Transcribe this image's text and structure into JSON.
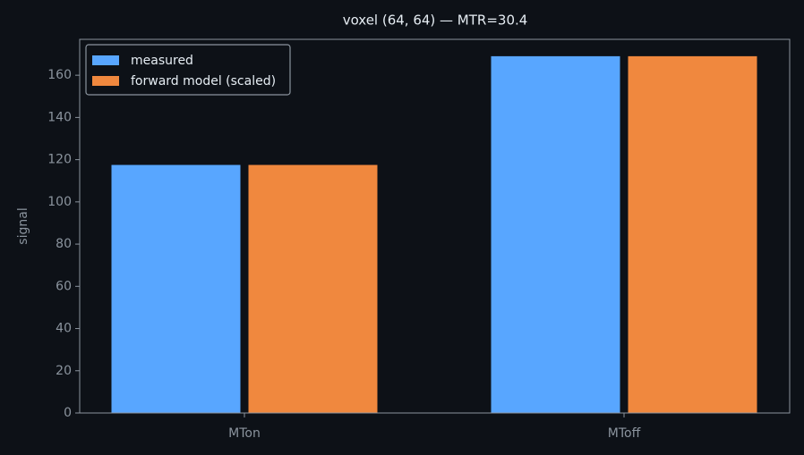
{
  "chart_data": {
    "type": "bar",
    "title": "voxel (64, 64) — MTR=30.4",
    "y_label": "signal",
    "categories": [
      "MTon",
      "MToff"
    ],
    "series": [
      {
        "name": "measured",
        "color": "#58a6ff",
        "values": [
          117.5,
          169
        ]
      },
      {
        "name": "forward model (scaled)",
        "color": "#f0883e",
        "values": [
          117.5,
          169
        ]
      }
    ],
    "ylim": [
      0,
      177
    ],
    "yticks": [
      0,
      20,
      40,
      60,
      80,
      100,
      120,
      140,
      160
    ],
    "legend": "upper left",
    "grid": false
  }
}
